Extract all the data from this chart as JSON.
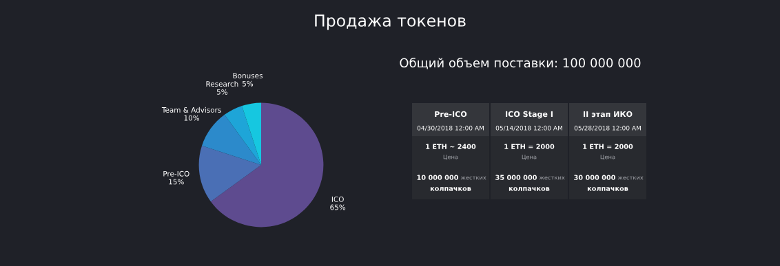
{
  "chart_data": [
    {
      "type": "pie",
      "title": "Продажа токенов",
      "categories": [
        "ICO",
        "Pre-ICO",
        "Team & Advisors",
        "Research",
        "Bonuses"
      ],
      "values": [
        65,
        15,
        10,
        5,
        5
      ],
      "value_labels": [
        "65%",
        "15%",
        "10%",
        "5%",
        "5%"
      ],
      "colors": [
        "#5e4b8f",
        "#4a6fb5",
        "#2c8acb",
        "#1ea5d8",
        "#16c7e0"
      ]
    },
    {
      "type": "other",
      "title": "Общий объем поставки: 100 000 000",
      "annotations": [
        "Pre-ICO",
        "ICO Stage I",
        "II этап ИКО",
        "04/30/2018 12:00 AM",
        "05/14/2018 12:00 AM",
        "05/28/2018 12:00 AM",
        "1 ETH ~ 2400",
        "1 ETH = 2000",
        "1 ETH = 2000",
        "Цена",
        "Цена",
        "Цена",
        "10 000 000",
        "35 000 000",
        "30 000 000",
        "жестких",
        "жестких",
        "жестких",
        "колпачков",
        "колпачков",
        "колпачков"
      ]
    }
  ]
}
